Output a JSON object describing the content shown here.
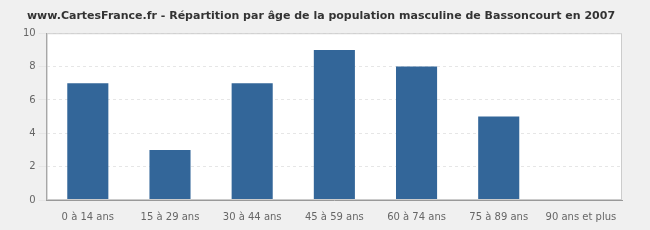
{
  "chart_data": {
    "type": "bar",
    "title": "www.CartesFrance.fr - Répartition par âge de la population masculine de Bassoncourt en 2007",
    "categories": [
      "0 à 14 ans",
      "15 à 29 ans",
      "30 à 44 ans",
      "45 à 59 ans",
      "60 à 74 ans",
      "75 à 89 ans",
      "90 ans et plus"
    ],
    "values": [
      7,
      3,
      7,
      9,
      8,
      5,
      0
    ],
    "color": "#336699",
    "ylim": [
      0,
      10
    ],
    "yticks": [
      0,
      2,
      4,
      6,
      8,
      10
    ],
    "grid": true
  }
}
